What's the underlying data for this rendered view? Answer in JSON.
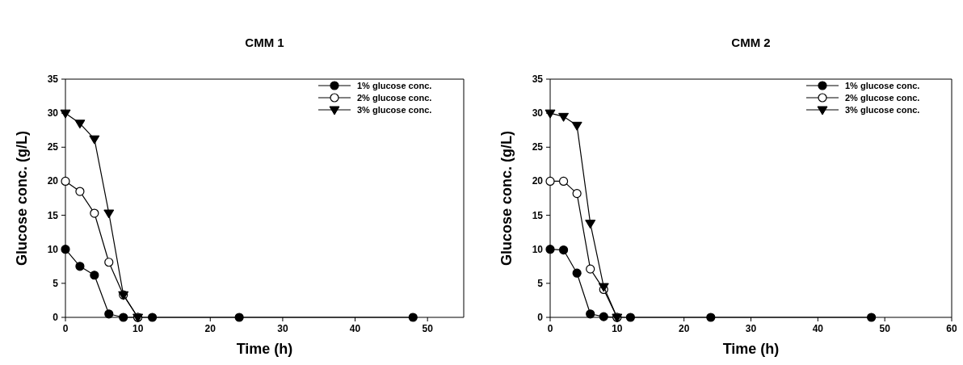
{
  "chart_data": [
    {
      "type": "line",
      "title": "CMM 1",
      "xlabel": "Time (h)",
      "ylabel": "Glucose conc. (g/L)",
      "xlim": [
        0,
        55
      ],
      "xticks": [
        0,
        10,
        20,
        30,
        40,
        50
      ],
      "ylim": [
        0,
        35
      ],
      "yticks": [
        0,
        5,
        10,
        15,
        20,
        25,
        30,
        35
      ],
      "grid": false,
      "legend": "top right",
      "series": [
        {
          "name": "1% glucose conc.",
          "color": "#000000",
          "marker": "circle",
          "x": [
            0,
            2,
            4,
            6,
            8,
            10,
            12,
            24,
            48
          ],
          "values": [
            10,
            7.5,
            6.2,
            0.5,
            0,
            0,
            0,
            0,
            0
          ]
        },
        {
          "name": "2% glucose conc.",
          "color": "#ffffff",
          "marker": "circle",
          "x": [
            0,
            2,
            4,
            6,
            8,
            10
          ],
          "values": [
            20,
            18.5,
            15.3,
            8.1,
            3.3,
            0
          ]
        },
        {
          "name": "3% glucose conc.",
          "color": "#000000",
          "marker": "triangle",
          "x": [
            0,
            2,
            4,
            6,
            8,
            10
          ],
          "values": [
            30,
            28.5,
            26.2,
            15.3,
            3.3,
            0
          ]
        }
      ]
    },
    {
      "type": "line",
      "title": "CMM 2",
      "xlabel": "Time (h)",
      "ylabel": "Glucose conc. (g/L)",
      "xlim": [
        0,
        60
      ],
      "xticks": [
        0,
        10,
        20,
        30,
        40,
        50,
        60
      ],
      "ylim": [
        0,
        35
      ],
      "yticks": [
        0,
        5,
        10,
        15,
        20,
        25,
        30,
        35
      ],
      "grid": false,
      "legend": "top right",
      "series": [
        {
          "name": "1% glucose conc.",
          "color": "#000000",
          "marker": "circle",
          "x": [
            0,
            2,
            4,
            6,
            8,
            10,
            12,
            24,
            48
          ],
          "values": [
            10,
            9.9,
            6.5,
            0.5,
            0.1,
            0,
            0,
            0,
            0
          ]
        },
        {
          "name": "2% glucose conc.",
          "color": "#ffffff",
          "marker": "circle",
          "x": [
            0,
            2,
            4,
            6,
            8,
            10
          ],
          "values": [
            20,
            20,
            18.2,
            7.1,
            4.1,
            0
          ]
        },
        {
          "name": "3% glucose conc.",
          "color": "#000000",
          "marker": "triangle",
          "x": [
            0,
            2,
            4,
            6,
            8,
            10
          ],
          "values": [
            30,
            29.5,
            28.2,
            13.8,
            4.5,
            0
          ]
        }
      ]
    }
  ]
}
